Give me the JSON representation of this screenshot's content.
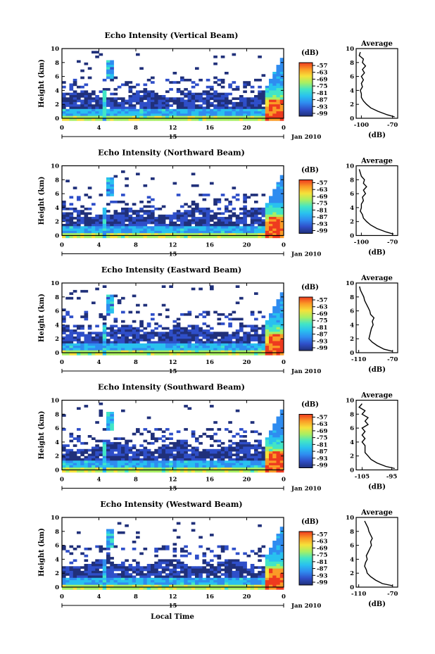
{
  "colors": {
    "colormap": [
      "#20307a",
      "#2f4fc9",
      "#2f8cf0",
      "#29c1ef",
      "#42e5c6",
      "#a8ef63",
      "#f6e13a",
      "#fb9b26",
      "#ee3a1f"
    ]
  },
  "shared": {
    "ylabel": "Height (km)",
    "xlabel": "Local Time",
    "date_label": "Jan 2010",
    "day_label": "15",
    "x_ticks": [
      "0",
      "4",
      "8",
      "12",
      "16",
      "20",
      "0"
    ],
    "y_ticks": [
      "0",
      "2",
      "4",
      "6",
      "8",
      "10"
    ],
    "colorbar_unit": "(dB)",
    "colorbar_ticks": [
      "-57",
      "-63",
      "-69",
      "-75",
      "-81",
      "-87",
      "-93",
      "-99"
    ],
    "profile_title": "Average",
    "profile_unit": "(dB)"
  },
  "chart_data": [
    {
      "type": "heatmap",
      "title": "Echo Intensity (Vertical Beam)",
      "xlabel": "Local Time",
      "ylabel": "Height (km)",
      "xlim": [
        0,
        24
      ],
      "ylim": [
        0,
        10
      ],
      "colorbar_range": [
        -99,
        -57
      ],
      "profile": {
        "title": "Average",
        "xlabel": "(dB)",
        "xticks": [
          "-100",
          "-70"
        ],
        "xlim": [
          -105,
          -65
        ],
        "height": [
          0.2,
          0.5,
          1,
          1.5,
          2,
          2.5,
          3,
          3.5,
          4,
          4.5,
          5,
          5.5,
          6,
          6.5,
          7,
          7.5,
          8,
          8.5,
          9,
          9.5
        ],
        "db": [
          -68,
          -75,
          -84,
          -91,
          -95,
          -98,
          -100,
          -100,
          -101,
          -99,
          -100,
          -98,
          -100,
          -97,
          -99,
          -96,
          -99,
          -98,
          -102,
          -101
        ]
      }
    },
    {
      "type": "heatmap",
      "title": "Echo Intensity (Northward Beam)",
      "xlabel": "Local Time",
      "ylabel": "Height (km)",
      "xlim": [
        0,
        24
      ],
      "ylim": [
        0,
        10
      ],
      "colorbar_range": [
        -99,
        -57
      ],
      "profile": {
        "title": "Average",
        "xlabel": "(dB)",
        "xticks": [
          "-100",
          "-70"
        ],
        "xlim": [
          -105,
          -65
        ],
        "height": [
          0.2,
          0.5,
          1,
          1.5,
          2,
          2.5,
          3,
          3.5,
          4,
          4.5,
          5,
          5.5,
          6,
          6.5,
          7,
          7.5,
          8,
          8.5,
          9,
          9.5
        ],
        "db": [
          -69,
          -76,
          -85,
          -91,
          -95,
          -98,
          -99,
          -101,
          -100,
          -100,
          -98,
          -99,
          -96,
          -98,
          -95,
          -98,
          -97,
          -100,
          -101,
          -102
        ]
      }
    },
    {
      "type": "heatmap",
      "title": "Echo Intensity (Eastward Beam)",
      "xlabel": "Local Time",
      "ylabel": "Height (km)",
      "xlim": [
        0,
        24
      ],
      "ylim": [
        0,
        10
      ],
      "colorbar_range": [
        -99,
        -57
      ],
      "profile": {
        "title": "Average",
        "xlabel": "(dB)",
        "xticks": [
          "-110",
          "-70"
        ],
        "xlim": [
          -113,
          -64
        ],
        "height": [
          0.2,
          0.5,
          1,
          1.5,
          2,
          2.5,
          3,
          3.5,
          4,
          4.5,
          5,
          5.5,
          6,
          6.5,
          7,
          7.5,
          8,
          8.5,
          9,
          9.5
        ],
        "db": [
          -70,
          -80,
          -88,
          -94,
          -98,
          -97,
          -96,
          -95,
          -93,
          -94,
          -92,
          -96,
          -97,
          -99,
          -101,
          -103,
          -104,
          -106,
          -108,
          -109
        ]
      }
    },
    {
      "type": "heatmap",
      "title": "Echo Intensity (Southward Beam)",
      "xlabel": "Local Time",
      "ylabel": "Height (km)",
      "xlim": [
        0,
        24
      ],
      "ylim": [
        0,
        10
      ],
      "colorbar_range": [
        -99,
        -57
      ],
      "profile": {
        "title": "Average",
        "xlabel": "(dB)",
        "xticks": [
          "-105",
          "-95"
        ],
        "xlim": [
          -107,
          -93
        ],
        "height": [
          0.2,
          0.5,
          1,
          1.5,
          2,
          2.5,
          3,
          3.5,
          4,
          4.5,
          5,
          5.5,
          6,
          6.5,
          7,
          7.5,
          8,
          8.5,
          9,
          9.5
        ],
        "db": [
          -94,
          -97,
          -100,
          -102,
          -103,
          -104,
          -104,
          -104,
          -105,
          -104,
          -105,
          -104,
          -105,
          -103,
          -104,
          -103,
          -105,
          -104,
          -106,
          -105
        ]
      }
    },
    {
      "type": "heatmap",
      "title": "Echo Intensity (Westward Beam)",
      "xlabel": "Local Time",
      "ylabel": "Height (km)",
      "xlim": [
        0,
        24
      ],
      "ylim": [
        0,
        10
      ],
      "colorbar_range": [
        -99,
        -57
      ],
      "profile": {
        "title": "Average",
        "xlabel": "(dB)",
        "xticks": [
          "-110",
          "-70"
        ],
        "xlim": [
          -113,
          -64
        ],
        "height": [
          0.2,
          0.5,
          1,
          1.5,
          2,
          2.5,
          3,
          3.5,
          4,
          4.5,
          5,
          5.5,
          6,
          6.5,
          7,
          7.5,
          8,
          8.5,
          9,
          9.5
        ],
        "db": [
          -70,
          -82,
          -90,
          -96,
          -100,
          -101,
          -103,
          -102,
          -100,
          -101,
          -99,
          -97,
          -95,
          -96,
          -94,
          -96,
          -98,
          -99,
          -101,
          -103
        ]
      }
    }
  ]
}
